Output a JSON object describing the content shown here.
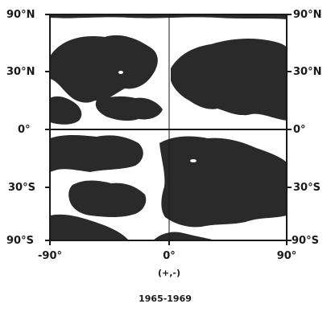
{
  "map": {
    "projection": "lat-lon grid",
    "ink_color": "#2a2a2a",
    "background_color": "#ffffff",
    "latitude_labels": [
      "90°N",
      "30°N",
      "0°",
      "30°S",
      "90°S"
    ],
    "longitude_labels": [
      "-90°",
      "0°",
      "90°"
    ],
    "sign_label": "(+,-)",
    "period_label": "1965-1969"
  }
}
